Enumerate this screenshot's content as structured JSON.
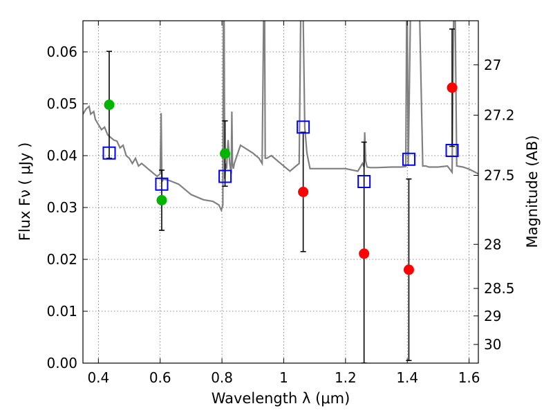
{
  "chart_data": {
    "type": "scatter",
    "xlabel": "Wavelength λ (μm)",
    "ylabel": "Flux Fν ( μJy )",
    "y2label": "Magnitude (AB)",
    "xlim": [
      0.35,
      1.63
    ],
    "ylim": [
      0.0,
      0.066
    ],
    "x_ticks": [
      0.4,
      0.6,
      0.8,
      1.0,
      1.2,
      1.4,
      1.6
    ],
    "x_tick_labels": [
      "0.4",
      "0.6",
      "0.8",
      "1",
      "1.2",
      "1.4",
      "1.6"
    ],
    "y_ticks": [
      0.0,
      0.01,
      0.02,
      0.03,
      0.04,
      0.05,
      0.06
    ],
    "y_tick_labels": [
      "0.00",
      "0.01",
      "0.02",
      "0.03",
      "0.04",
      "0.05",
      "0.06"
    ],
    "y2_ticks": [
      {
        "label": "27",
        "flux": 0.0575
      },
      {
        "label": "27.2",
        "flux": 0.0478
      },
      {
        "label": "27.5",
        "flux": 0.0362
      },
      {
        "label": "28",
        "flux": 0.0229
      },
      {
        "label": "28.5",
        "flux": 0.0144
      },
      {
        "label": "29",
        "flux": 0.0091
      },
      {
        "label": "30",
        "flux": 0.0036
      }
    ],
    "grid": true,
    "colors": {
      "model": "#808080",
      "green": "#00b400",
      "red": "#ff0000",
      "box": "#0000ff",
      "errorbar": "#000000"
    },
    "series": [
      {
        "kind": "line",
        "color": "#808080",
        "x": [
          0.35,
          0.36,
          0.37,
          0.375,
          0.385,
          0.39,
          0.4,
          0.41,
          0.42,
          0.43,
          0.44,
          0.45,
          0.46,
          0.47,
          0.48,
          0.49,
          0.5,
          0.51,
          0.52,
          0.53,
          0.54,
          0.55,
          0.56,
          0.57,
          0.58,
          0.59,
          0.6,
          0.603,
          0.605,
          0.607,
          0.61,
          0.63,
          0.66,
          0.7,
          0.74,
          0.77,
          0.79,
          0.798,
          0.803,
          0.805,
          0.807,
          0.809,
          0.812,
          0.815,
          0.818,
          0.82,
          0.825,
          0.83,
          0.832,
          0.834,
          0.837,
          0.84,
          0.86,
          0.9,
          0.92,
          0.93,
          0.935,
          0.938,
          0.94,
          0.945,
          0.96,
          0.99,
          1.02,
          1.04,
          1.05,
          1.055,
          1.058,
          1.06,
          1.063,
          1.068,
          1.075,
          1.08,
          1.085,
          1.09,
          1.1,
          1.15,
          1.2,
          1.24,
          1.255,
          1.26,
          1.262,
          1.265,
          1.27,
          1.28,
          1.3,
          1.35,
          1.38,
          1.395,
          1.398,
          1.4,
          1.403,
          1.41,
          1.42,
          1.43,
          1.44,
          1.45,
          1.46,
          1.47,
          1.5,
          1.53,
          1.545,
          1.55,
          1.555,
          1.56,
          1.58,
          1.6,
          1.62,
          1.63
        ],
        "y": [
          0.048,
          0.049,
          0.0495,
          0.048,
          0.0485,
          0.047,
          0.046,
          0.045,
          0.0455,
          0.044,
          0.0435,
          0.043,
          0.0428,
          0.0415,
          0.042,
          0.04,
          0.0395,
          0.0385,
          0.0395,
          0.038,
          0.0385,
          0.038,
          0.0375,
          0.037,
          0.0365,
          0.036,
          0.0365,
          0.0482,
          0.0376,
          0.035,
          0.0355,
          0.0352,
          0.0345,
          0.0325,
          0.0315,
          0.0312,
          0.0305,
          0.0295,
          0.0305,
          0.0668,
          0.0668,
          0.0355,
          0.0385,
          0.0375,
          0.041,
          0.043,
          0.0385,
          0.0365,
          0.0485,
          0.0385,
          0.0375,
          0.0385,
          0.042,
          0.0405,
          0.0395,
          0.0385,
          0.0668,
          0.0668,
          0.0395,
          0.0395,
          0.04,
          0.0385,
          0.037,
          0.038,
          0.0385,
          0.0668,
          0.0668,
          0.0668,
          0.0668,
          0.0455,
          0.0405,
          0.039,
          0.0375,
          0.0375,
          0.0375,
          0.0375,
          0.0375,
          0.037,
          0.0385,
          0.0378,
          0.0445,
          0.039,
          0.0378,
          0.0377,
          0.0377,
          0.0378,
          0.0378,
          0.0379,
          0.0668,
          0.0668,
          0.038,
          0.0668,
          0.0668,
          0.0668,
          0.0668,
          0.038,
          0.038,
          0.0378,
          0.0378,
          0.038,
          0.0368,
          0.0668,
          0.0668,
          0.038,
          0.0378,
          0.0374,
          0.0368,
          0.0365
        ]
      },
      {
        "kind": "model_photometry",
        "marker": "open-square",
        "color": "#0000ff",
        "x": [
          0.435,
          0.605,
          0.81,
          1.063,
          1.26,
          1.405,
          1.545
        ],
        "y": [
          0.0405,
          0.0345,
          0.036,
          0.0455,
          0.035,
          0.0393,
          0.041
        ]
      },
      {
        "kind": "observed",
        "marker": "filled-circle",
        "x": [
          0.435,
          0.605,
          0.81,
          1.063,
          1.26,
          1.405,
          1.545
        ],
        "y": [
          0.0498,
          0.0314,
          0.0404,
          0.033,
          0.0211,
          0.018,
          0.0531
        ],
        "yerr": [
          0.0103,
          0.0058,
          0.0063,
          0.0115,
          0.0215,
          0.0175,
          0.0113
        ],
        "colors": [
          "#00b400",
          "#00b400",
          "#00b400",
          "#ff0000",
          "#ff0000",
          "#ff0000",
          "#ff0000"
        ]
      }
    ]
  }
}
